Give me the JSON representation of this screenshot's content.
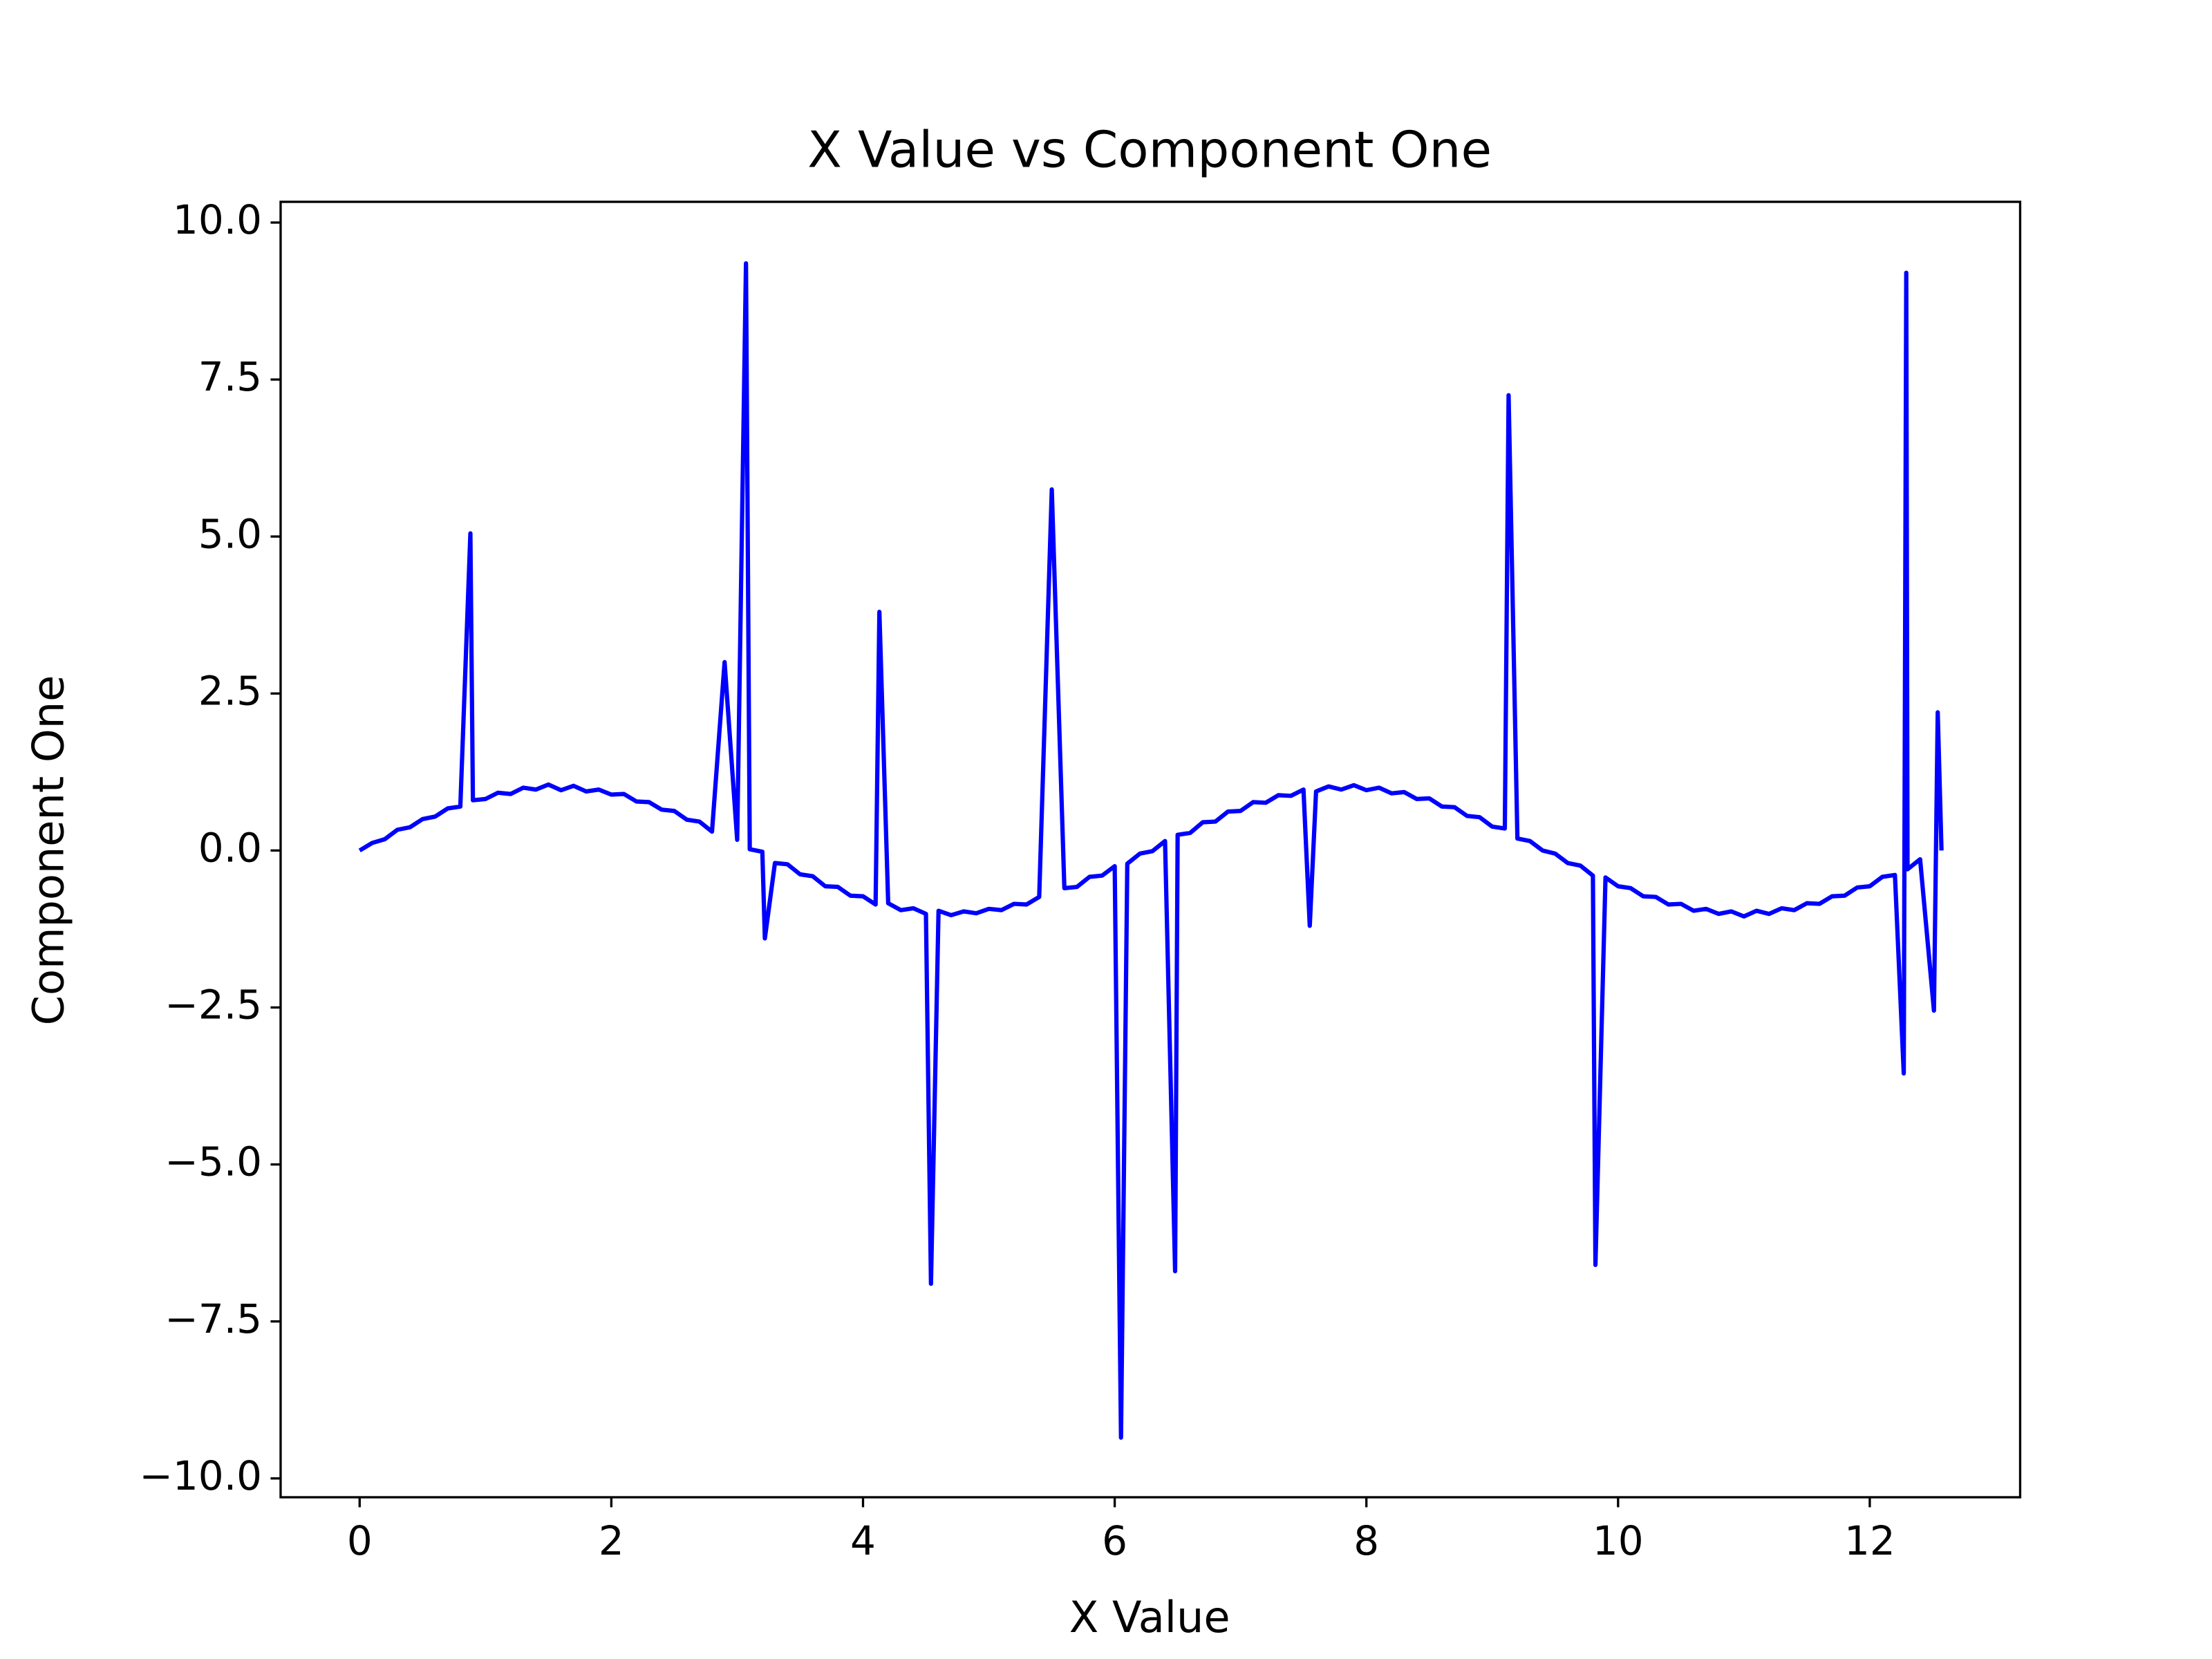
{
  "chart_data": {
    "type": "line",
    "title": "X Value vs Component One",
    "x_label": "X Value",
    "y_label": "Component One",
    "x": [
      0,
      0.1,
      0.2,
      0.3,
      0.4,
      0.5,
      0.6,
      0.7,
      0.8,
      0.88,
      0.9,
      1.0,
      1.1,
      1.2,
      1.3,
      1.4,
      1.5,
      1.6,
      1.7,
      1.8,
      1.9,
      2.0,
      2.1,
      2.2,
      2.3,
      2.4,
      2.5,
      2.6,
      2.7,
      2.8,
      2.9,
      3.0,
      3.07,
      3.1,
      3.2,
      3.22,
      3.3,
      3.4,
      3.5,
      3.6,
      3.7,
      3.8,
      3.9,
      4.0,
      4.1,
      4.13,
      4.2,
      4.3,
      4.4,
      4.5,
      4.54,
      4.6,
      4.7,
      4.8,
      4.9,
      5.0,
      5.1,
      5.2,
      5.3,
      5.4,
      5.5,
      5.6,
      5.7,
      5.8,
      5.9,
      6.0,
      6.05,
      6.1,
      6.2,
      6.3,
      6.4,
      6.48,
      6.5,
      6.6,
      6.7,
      6.8,
      6.9,
      7.0,
      7.1,
      7.2,
      7.3,
      7.4,
      7.5,
      7.55,
      7.6,
      7.7,
      7.8,
      7.9,
      8.0,
      8.1,
      8.2,
      8.3,
      8.4,
      8.5,
      8.6,
      8.7,
      8.8,
      8.9,
      9.0,
      9.1,
      9.13,
      9.2,
      9.3,
      9.4,
      9.5,
      9.6,
      9.7,
      9.8,
      9.82,
      9.9,
      10.0,
      10.1,
      10.2,
      10.3,
      10.4,
      10.5,
      10.6,
      10.7,
      10.8,
      10.9,
      11.0,
      11.1,
      11.2,
      11.3,
      11.4,
      11.5,
      11.6,
      11.7,
      11.8,
      11.9,
      12.0,
      12.1,
      12.2,
      12.27,
      12.29,
      12.3,
      12.4,
      12.51,
      12.54,
      12.57
    ],
    "series": [
      {
        "name": "Component One",
        "color": "#0000ff",
        "values": [
          0.0,
          0.12,
          0.18,
          0.33,
          0.37,
          0.5,
          0.54,
          0.67,
          0.7,
          5.05,
          0.8,
          0.82,
          0.92,
          0.9,
          1.0,
          0.97,
          1.05,
          0.96,
          1.03,
          0.94,
          0.97,
          0.89,
          0.9,
          0.78,
          0.77,
          0.65,
          0.63,
          0.49,
          0.46,
          0.3,
          3.0,
          0.17,
          9.35,
          0.02,
          -0.02,
          -1.4,
          -0.2,
          -0.22,
          -0.38,
          -0.41,
          -0.57,
          -0.58,
          -0.72,
          -0.73,
          -0.86,
          3.8,
          -0.84,
          -0.95,
          -0.92,
          -1.01,
          -6.9,
          -0.96,
          -1.03,
          -0.97,
          -1.0,
          -0.93,
          -0.95,
          -0.85,
          -0.86,
          -0.74,
          5.75,
          -0.6,
          -0.58,
          -0.42,
          -0.4,
          -0.25,
          -9.35,
          -0.21,
          -0.05,
          -0.01,
          0.15,
          -6.7,
          0.25,
          0.28,
          0.45,
          0.46,
          0.62,
          0.63,
          0.77,
          0.76,
          0.88,
          0.87,
          0.97,
          -1.2,
          0.94,
          1.02,
          0.97,
          1.04,
          0.96,
          1.0,
          0.91,
          0.93,
          0.82,
          0.83,
          0.7,
          0.69,
          0.55,
          0.53,
          0.38,
          0.35,
          7.25,
          0.19,
          0.15,
          0.0,
          -0.05,
          -0.2,
          -0.24,
          -0.4,
          -6.6,
          -0.43,
          -0.57,
          -0.6,
          -0.73,
          -0.74,
          -0.86,
          -0.85,
          -0.96,
          -0.93,
          -1.01,
          -0.97,
          -1.05,
          -0.96,
          -1.01,
          -0.92,
          -0.95,
          -0.84,
          -0.85,
          -0.73,
          -0.72,
          -0.59,
          -0.57,
          -0.42,
          -0.39,
          -3.55,
          9.2,
          -0.3,
          -0.14,
          -2.55,
          2.2,
          0.0
        ]
      }
    ],
    "xlim": [
      -0.628,
      13.195
    ],
    "ylim": [
      -10.3,
      10.33
    ],
    "xticks": [
      0,
      2,
      4,
      6,
      8,
      10,
      12
    ],
    "yticks": [
      {
        "value": -10,
        "label": "−10.0"
      },
      {
        "value": -7.5,
        "label": "−7.5"
      },
      {
        "value": -5,
        "label": "−5.0"
      },
      {
        "value": -2.5,
        "label": "−2.5"
      },
      {
        "value": 0,
        "label": "0.0"
      },
      {
        "value": 2.5,
        "label": "2.5"
      },
      {
        "value": 5,
        "label": "5.0"
      },
      {
        "value": 7.5,
        "label": "7.5"
      },
      {
        "value": 10,
        "label": "10.0"
      }
    ]
  }
}
